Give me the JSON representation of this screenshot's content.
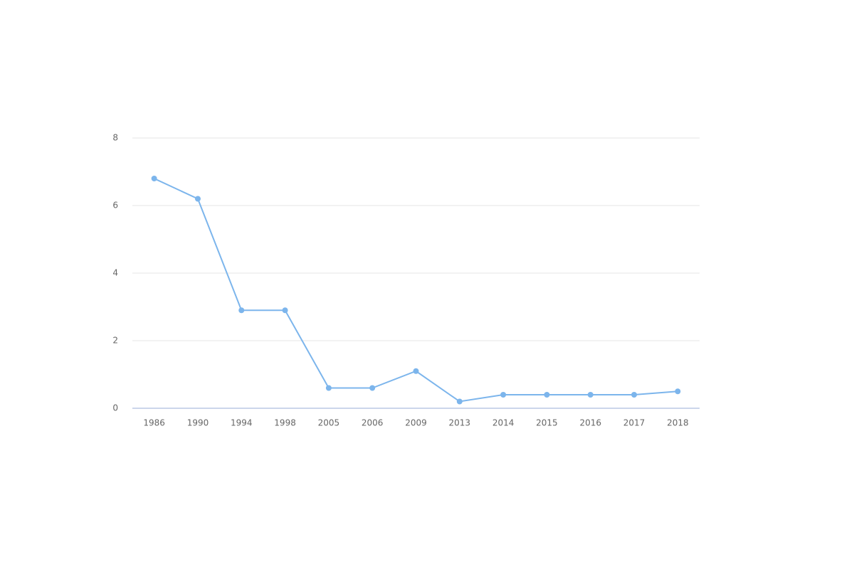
{
  "chart_data": {
    "type": "line",
    "categories": [
      "1986",
      "1990",
      "1994",
      "1998",
      "2005",
      "2006",
      "2009",
      "2013",
      "2014",
      "2015",
      "2016",
      "2017",
      "2018"
    ],
    "values": [
      6.8,
      6.2,
      2.9,
      2.9,
      0.6,
      0.6,
      1.1,
      0.2,
      0.4,
      0.4,
      0.4,
      0.4,
      0.5
    ],
    "color": "#7cb5ec",
    "ylim": [
      0,
      8
    ],
    "yticks": [
      0,
      2,
      4,
      6,
      8
    ],
    "grid": true
  }
}
